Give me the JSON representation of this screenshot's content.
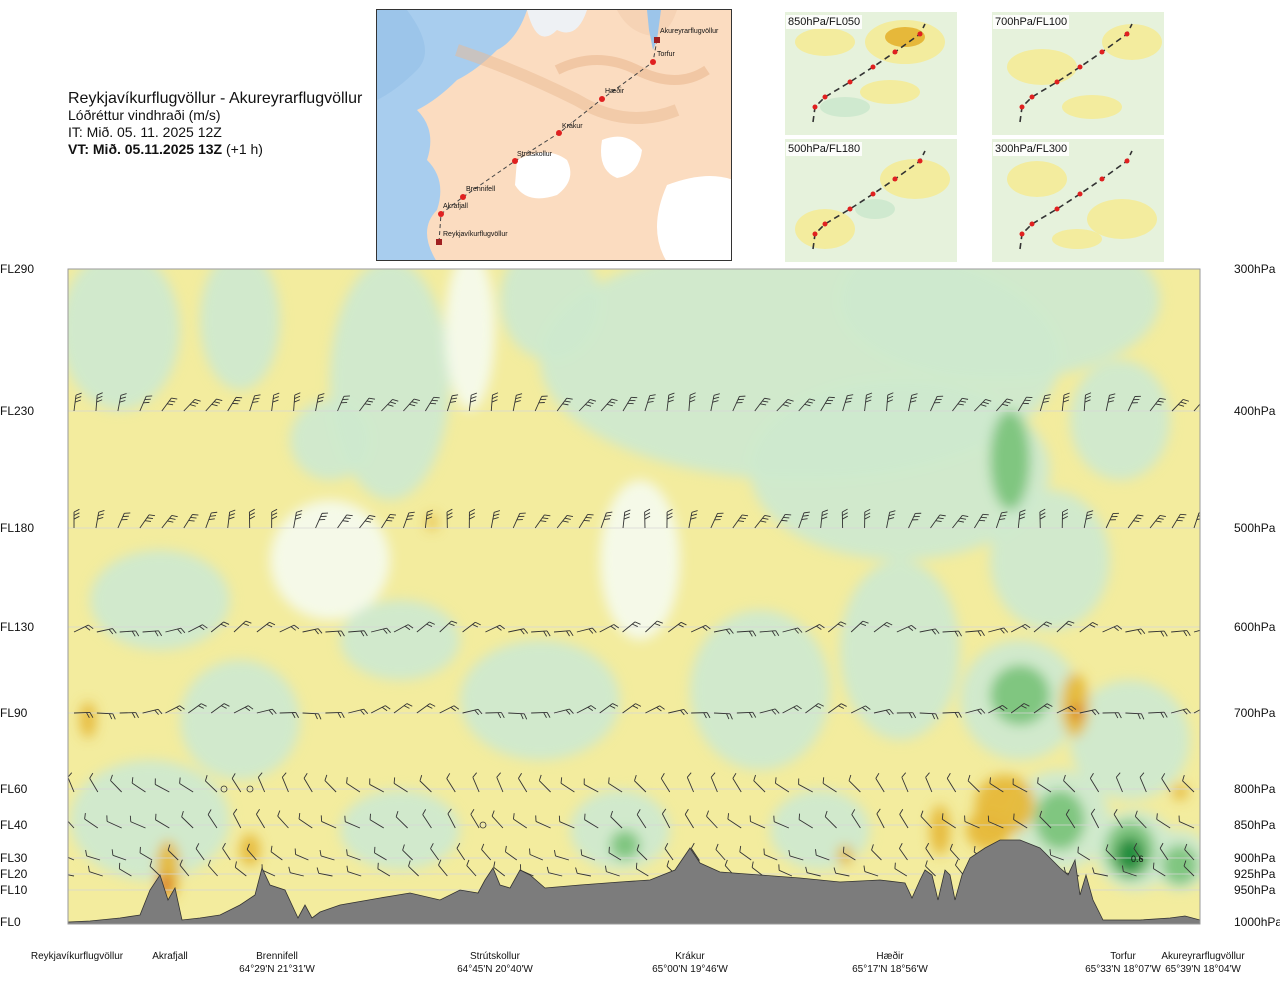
{
  "header": {
    "route": "Reykjavíkurflugvöllur - Akureyrarflugvöllur",
    "parameter": "Lóðréttur vindhraði (m/s)",
    "initial_time": "IT: Mið. 05. 11. 2025 12Z",
    "valid_time": "VT: Mið. 05.11.2025 13Z",
    "lead": " (+1 h)"
  },
  "map": {
    "places": [
      "Akureyrarflugvöllur",
      "Torfur",
      "Hæðir",
      "Krákur",
      "Strútskollur",
      "Brennifell",
      "Akrafjall",
      "Reykjavíkurflugvöllur"
    ]
  },
  "thumbnails": [
    {
      "label": "850hPa/FL050"
    },
    {
      "label": "700hPa/FL100"
    },
    {
      "label": "500hPa/FL180"
    },
    {
      "label": "300hPa/FL300"
    }
  ],
  "colors": {
    "positive": "#f3ec9e",
    "positive_strong": "#e6b83a",
    "positive_max": "#d8671f",
    "neutral": "#f4faec",
    "negative": "#cfe9cf",
    "negative_strong": "#7cc47c",
    "negative_max": "#1f8a3a",
    "terrain": "#7c7c7c"
  },
  "chart_data": {
    "type": "heatmap",
    "title": "Lóðréttur vindhraði (m/s)",
    "y_levels": [
      {
        "fl": "FL290",
        "hpa": "300hPa"
      },
      {
        "fl": "FL230",
        "hpa": "400hPa"
      },
      {
        "fl": "FL180",
        "hpa": "500hPa"
      },
      {
        "fl": "FL130",
        "hpa": "600hPa"
      },
      {
        "fl": "FL90",
        "hpa": "700hPa"
      },
      {
        "fl": "FL60",
        "hpa": "800hPa"
      },
      {
        "fl": "FL40",
        "hpa": "850hPa"
      },
      {
        "fl": "FL30",
        "hpa": "900hPa"
      },
      {
        "fl": "FL20",
        "hpa": "925hPa"
      },
      {
        "fl": "FL10",
        "hpa": "950hPa"
      },
      {
        "fl": "FL0",
        "hpa": "1000hPa"
      }
    ],
    "x_waypoints": [
      {
        "name": "Reykjavíkurflugvöllur",
        "coord": ""
      },
      {
        "name": "Akrafjall",
        "coord": ""
      },
      {
        "name": "Brennifell",
        "coord": "64°29'N 21°31'W"
      },
      {
        "name": "Strútskollur",
        "coord": "64°45'N 20°40'W"
      },
      {
        "name": "Krákur",
        "coord": "65°00'N 19°46'W"
      },
      {
        "name": "Hæðir",
        "coord": "65°17'N 18°56'W"
      },
      {
        "name": "Torfur",
        "coord": "65°33'N 18°07'W"
      },
      {
        "name": "Akureyrarflugvöllur",
        "coord": "65°39'N 18°04'W"
      }
    ],
    "contour_label": "0.6",
    "grid": true
  }
}
